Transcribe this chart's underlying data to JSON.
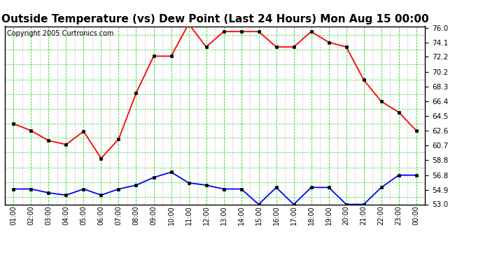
{
  "title": "Outside Temperature (vs) Dew Point (Last 24 Hours) Mon Aug 15 00:00",
  "copyright": "Copyright 2005 Curtronics.com",
  "x_labels": [
    "01:00",
    "02:00",
    "03:00",
    "04:00",
    "05:00",
    "06:00",
    "07:00",
    "08:00",
    "09:00",
    "10:00",
    "11:00",
    "12:00",
    "13:00",
    "14:00",
    "15:00",
    "16:00",
    "17:00",
    "18:00",
    "19:00",
    "20:00",
    "21:00",
    "22:00",
    "23:00",
    "00:00"
  ],
  "temp_values": [
    63.5,
    62.6,
    61.3,
    60.8,
    62.5,
    59.0,
    61.5,
    67.5,
    72.3,
    72.3,
    76.5,
    73.5,
    75.5,
    75.5,
    75.5,
    73.5,
    73.5,
    75.5,
    74.1,
    73.5,
    69.2,
    66.4,
    65.0,
    62.6
  ],
  "dew_values": [
    55.0,
    55.0,
    54.5,
    54.2,
    55.0,
    54.2,
    55.0,
    55.5,
    56.5,
    57.2,
    55.8,
    55.5,
    55.0,
    55.0,
    53.0,
    55.2,
    53.0,
    55.2,
    55.2,
    53.0,
    53.0,
    55.2,
    56.8,
    56.8
  ],
  "ylim_min": 53.0,
  "ylim_max": 76.0,
  "yticks": [
    53.0,
    54.9,
    56.8,
    58.8,
    60.7,
    62.6,
    64.5,
    66.4,
    68.3,
    70.2,
    72.2,
    74.1,
    76.0
  ],
  "temp_color": "#ff0000",
  "dew_color": "#0000ff",
  "plot_bg": "#ffffff",
  "fig_bg": "#ffffff",
  "border_color": "#000000",
  "grid_h_color": "#00cc00",
  "grid_v_color": "#aaaaaa",
  "grid_h_minor_color": "#00cc00",
  "title_fontsize": 11,
  "copyright_fontsize": 7
}
